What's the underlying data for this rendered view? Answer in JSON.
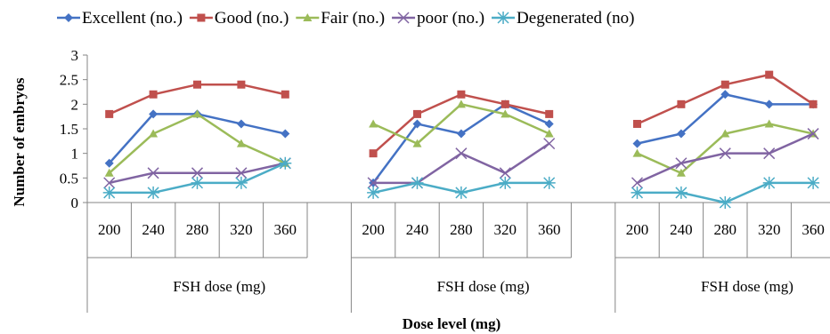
{
  "chart_data": {
    "type": "line",
    "ylabel": "Number of embryos",
    "xlabel": "Dose level (mg)",
    "ylim": [
      0,
      3
    ],
    "yticks": [
      0,
      0.5,
      1,
      1.5,
      2,
      2.5,
      3
    ],
    "ytick_labels": [
      "0",
      "0.5",
      "1",
      "1.5",
      "2",
      "2.5",
      "3"
    ],
    "grid": false,
    "legend_position": "top",
    "groups": [
      {
        "label": "FSH dose (mg)",
        "categories": [
          "200",
          "240",
          "280",
          "320",
          "360"
        ]
      },
      {
        "label": "FSH dose (mg)",
        "categories": [
          "200",
          "240",
          "280",
          "320",
          "360"
        ]
      },
      {
        "label": "FSH dose (mg)",
        "categories": [
          "200",
          "240",
          "280",
          "320",
          "360"
        ]
      }
    ],
    "series": [
      {
        "name": "Excellent (no.)",
        "color": "#4472C4",
        "marker": "diamond",
        "values": [
          [
            0.8,
            1.8,
            1.8,
            1.6,
            1.4
          ],
          [
            0.4,
            1.6,
            1.4,
            2.0,
            1.6
          ],
          [
            1.2,
            1.4,
            2.2,
            2.0,
            2.0
          ]
        ]
      },
      {
        "name": "Good (no.)",
        "color": "#C0504D",
        "marker": "square",
        "values": [
          [
            1.8,
            2.2,
            2.4,
            2.4,
            2.2
          ],
          [
            1.0,
            1.8,
            2.2,
            2.0,
            1.8
          ],
          [
            1.6,
            2.0,
            2.4,
            2.6,
            2.0
          ]
        ]
      },
      {
        "name": "Fair (no.)",
        "color": "#9BBB59",
        "marker": "triangle",
        "values": [
          [
            0.6,
            1.4,
            1.8,
            1.2,
            0.8
          ],
          [
            1.6,
            1.2,
            2.0,
            1.8,
            1.4
          ],
          [
            1.0,
            0.6,
            1.4,
            1.6,
            1.4
          ]
        ]
      },
      {
        "name": "poor (no.)",
        "color": "#8064A2",
        "marker": "x",
        "values": [
          [
            0.4,
            0.6,
            0.6,
            0.6,
            0.8
          ],
          [
            0.4,
            0.4,
            1.0,
            0.6,
            1.2
          ],
          [
            0.4,
            0.8,
            1.0,
            1.0,
            1.4
          ]
        ]
      },
      {
        "name": "Degenerated (no)",
        "color": "#4BACC6",
        "marker": "star",
        "values": [
          [
            0.2,
            0.2,
            0.4,
            0.4,
            0.8
          ],
          [
            0.2,
            0.4,
            0.2,
            0.4,
            0.4
          ],
          [
            0.2,
            0.2,
            0.0,
            0.4,
            0.4
          ]
        ]
      }
    ]
  }
}
